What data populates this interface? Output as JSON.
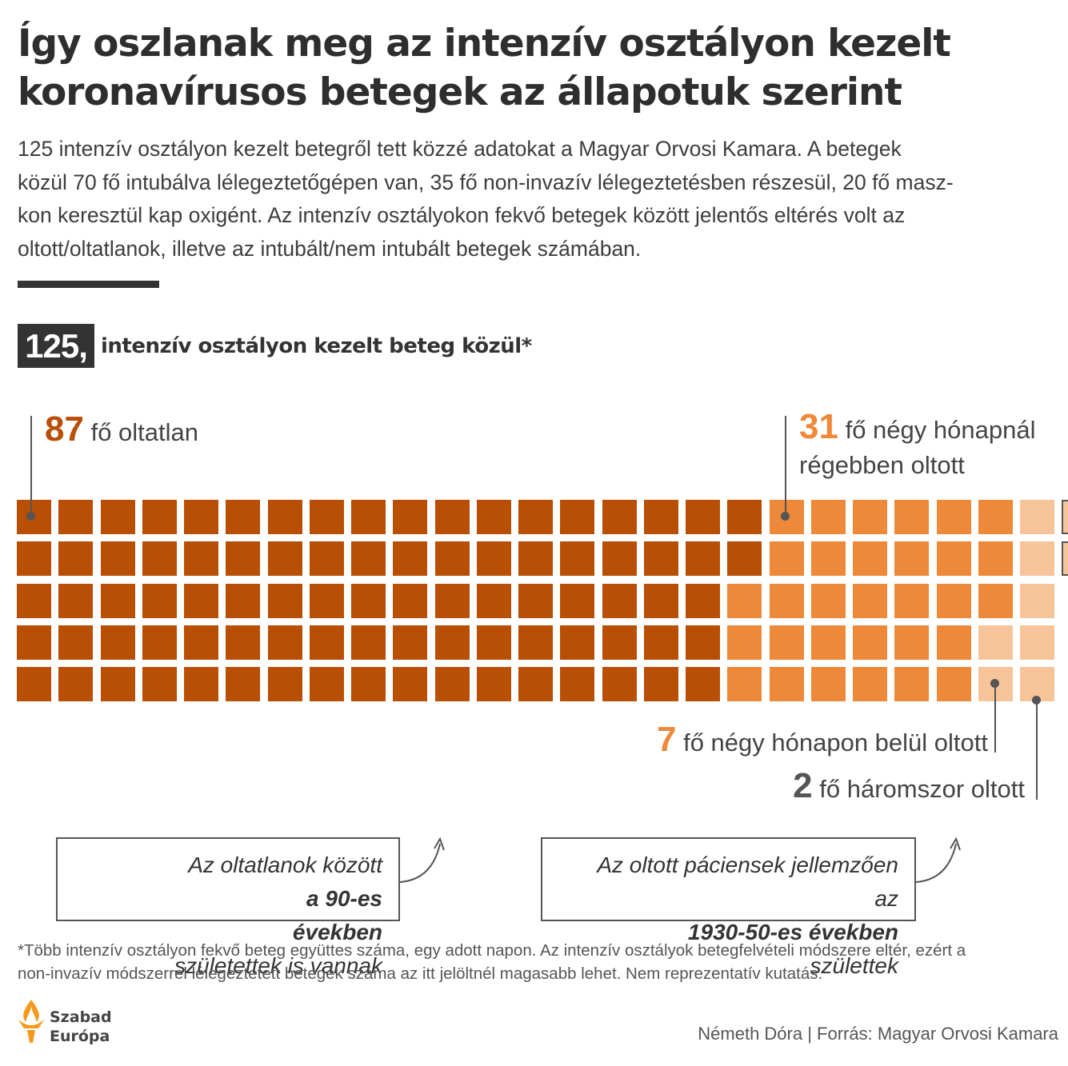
{
  "title": {
    "line1": "Így oszlanak meg az intenzív osztályon kezelt",
    "line2": "koronavírusos betegek az állapotuk szerint"
  },
  "intro": {
    "line1": "125 intenzív osztályon kezelt betegről tett közzé adatokat a Magyar Orvosi Kamara. A betegek",
    "line2": "közül 70 fő intubálva lélegeztetőgépen van, 35 fő non-invazív lélegeztetésben részesül, 20 fő masz-",
    "line3": "kon keresztül kap oxigént. Az intenzív osztályokon fekvő betegek között jelentős eltérés volt az",
    "line4": "oltott/oltatlanok, illetve az intubált/nem intubált betegek számában."
  },
  "headline": {
    "total": "125,",
    "label": "intenzív osztályon kezelt beteg közül*"
  },
  "chart_data": {
    "type": "waffle",
    "total": 125,
    "columns": 25,
    "rows": 5,
    "fill_order": "column-major",
    "categories": [
      {
        "name": "oltatlan",
        "count": 87,
        "num_label": "87",
        "label": "fő oltatlan",
        "color": "#b94e05"
      },
      {
        "name": "négy hónapnál régebben oltott",
        "count": 31,
        "num_label": "31",
        "label_line1": "fő négy hónapnál",
        "label_line2": "régebben oltott",
        "color": "#ee893a"
      },
      {
        "name": "négy hónapon belül oltott",
        "count": 7,
        "num_label": "7",
        "label": "fő négy hónapon belül oltott",
        "color": "#f7c49a"
      },
      {
        "name": "háromszor oltott",
        "count": 2,
        "num_label": "2",
        "label": "fő háromszor oltott",
        "color": "#f7c49a",
        "outlined": true
      }
    ]
  },
  "notes": {
    "left_line1_pre": "Az oltatlanok között ",
    "left_line1_bold": "a 90-es",
    "left_line2_bold": "években",
    "left_line2_post": " születettek is vannak",
    "right_line1": "Az oltott páciensek jellemzően",
    "right_line2_pre": "az ",
    "right_line2_bold": "1930-50-es években",
    "right_line2_post": " születtek"
  },
  "footnote": {
    "line1": "*Több intenzív osztályon fekvő beteg együttes száma, egy adott napon. Az intenzív osztályok betegfelvételi módszere eltér, ezért a",
    "line2": "non-invazív módszerrel lélegeztetett betegek száma az itt jelöltnél magasabb lehet. Nem reprezentatív kutatás."
  },
  "credit": "Németh Dóra | Forrás: Magyar Orvosi Kamara",
  "logo": {
    "line1": "Szabad",
    "line2": "Európa",
    "accent": "#f39a1e"
  },
  "colors": {
    "text_dark": "#333333",
    "num_unvacc": "#b94e05",
    "num_old": "#ee893a",
    "num_recent": "#ee893a",
    "num_three": "#555555"
  }
}
